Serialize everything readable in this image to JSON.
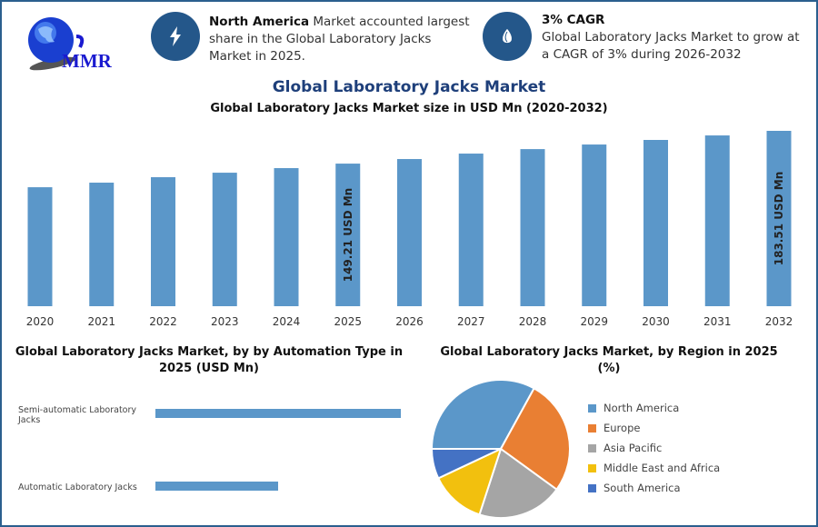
{
  "logo": {
    "text": "MMR"
  },
  "info_cards": [
    {
      "icon": "lightning-icon",
      "bold": "North America",
      "text": " Market accounted largest share in the Global Laboratory Jacks Market in 2025."
    },
    {
      "icon": "drop-icon",
      "bold": "3% CAGR",
      "text": "Global Laboratory Jacks Market to grow at a CAGR of 3% during 2026-2032"
    }
  ],
  "title": "Global Laboratory Jacks Market",
  "colors": {
    "bar": "#5b97c9",
    "frame": "#2b5f8e",
    "icon_bg": "#24578a",
    "title": "#1e3f7a"
  },
  "chart_data": [
    {
      "type": "bar",
      "title": "Global Laboratory Jacks Market size in USD Mn (2020-2032)",
      "categories": [
        "2020",
        "2021",
        "2022",
        "2023",
        "2024",
        "2025",
        "2026",
        "2027",
        "2028",
        "2029",
        "2030",
        "2031",
        "2032"
      ],
      "values": [
        124.5,
        129.3,
        135,
        139.7,
        144.5,
        149.21,
        154,
        159.7,
        164.4,
        169.2,
        174,
        178.7,
        183.51
      ],
      "data_labels": {
        "2025": "149.21 USD Mn",
        "2032": "183.51 USD Mn"
      },
      "ylim": [
        0,
        190
      ],
      "grid": false
    },
    {
      "type": "bar",
      "orientation": "horizontal",
      "title": "Global Laboratory Jacks Market, by by Automation Type in 2025 (USD Mn)",
      "categories": [
        "Semi-automatic Laboratory Jacks",
        "Automatic Laboratory Jacks"
      ],
      "values": [
        99.5,
        49.7
      ],
      "grid": false
    },
    {
      "type": "pie",
      "title": "Global Laboratory Jacks Market, by Region in 2025 (%)",
      "legend_position": "right",
      "slices": [
        {
          "label": "North America",
          "value": 33,
          "color": "#5b97c9"
        },
        {
          "label": "Europe",
          "value": 27,
          "color": "#e97f33"
        },
        {
          "label": "Asia Pacific",
          "value": 20,
          "color": "#a5a5a5"
        },
        {
          "label": "Middle East and Africa",
          "value": 13,
          "color": "#f2c00e"
        },
        {
          "label": "South America",
          "value": 7,
          "color": "#4472c4"
        }
      ]
    }
  ]
}
